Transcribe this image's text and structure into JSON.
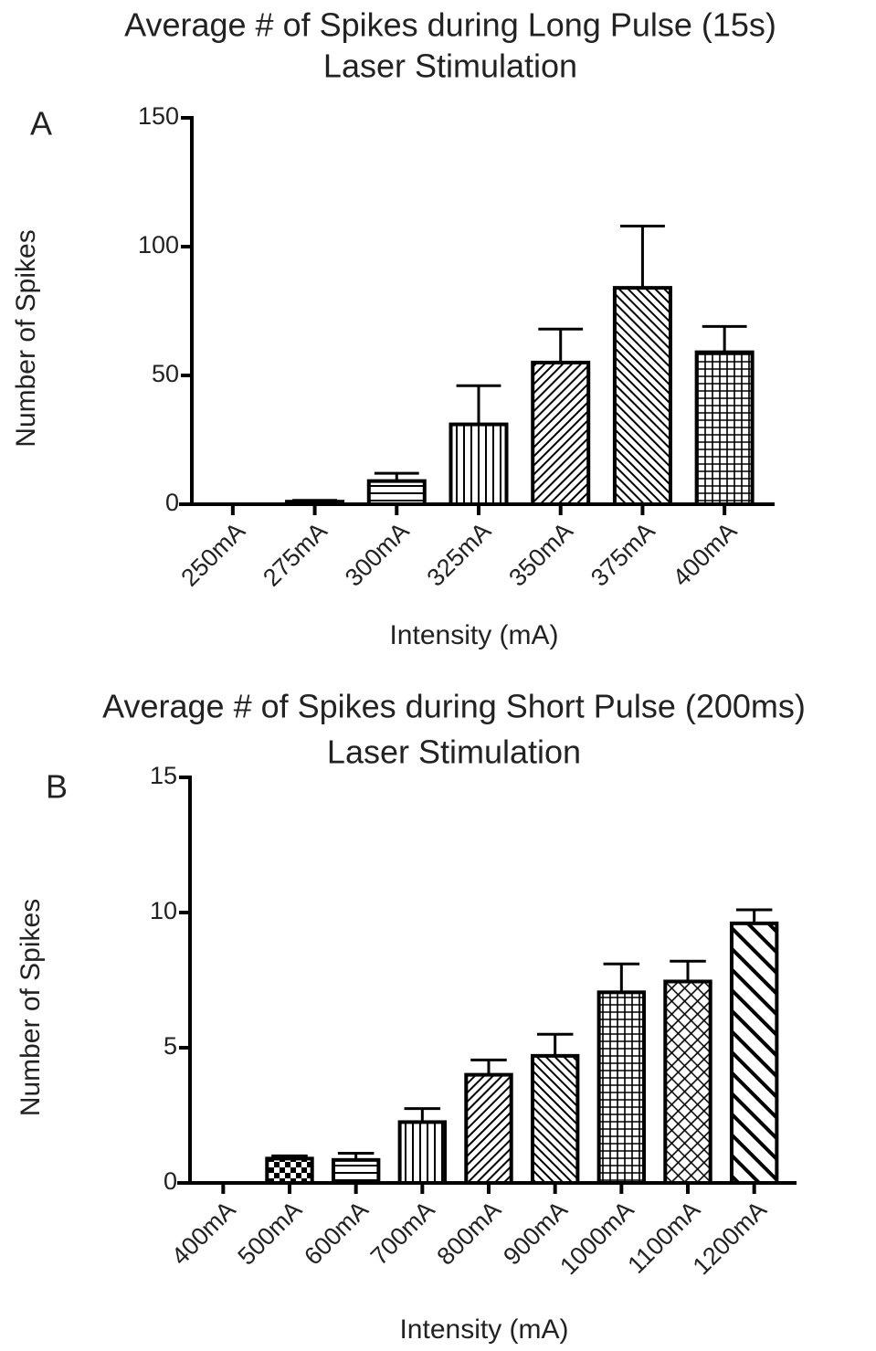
{
  "chart_data": [
    {
      "type": "bar",
      "panel_label": "A",
      "title": "Average # of Spikes during Long Pulse (15s)",
      "subtitle": "Laser Stimulation",
      "x_label": "Intensity (mA)",
      "y_label": "Number of Spikes",
      "categories": [
        "250mA",
        "275mA",
        "300mA",
        "325mA",
        "350mA",
        "375mA",
        "400mA"
      ],
      "values": [
        0,
        1,
        9,
        31,
        55,
        84,
        59
      ],
      "errors": [
        0,
        0.5,
        3,
        15,
        13,
        24,
        10
      ],
      "patterns": [
        "horizontal",
        "horizontal",
        "horizontal",
        "vertical",
        "diag-up",
        "diag-down",
        "grid"
      ],
      "color": "#000000",
      "ylim": [
        0,
        150
      ],
      "yticks": [
        0,
        50,
        100,
        150
      ]
    },
    {
      "type": "bar",
      "panel_label": "B",
      "title": "Average # of Spikes during Short Pulse (200ms)",
      "subtitle": "Laser Stimulation",
      "x_label": "Intensity (mA)",
      "y_label": "Number of Spikes",
      "categories": [
        "400mA",
        "500mA",
        "600mA",
        "700mA",
        "800mA",
        "900mA",
        "1000mA",
        "1100mA",
        "1200mA"
      ],
      "values": [
        0,
        0.9,
        0.85,
        2.25,
        4,
        4.7,
        7.05,
        7.45,
        9.6
      ],
      "errors": [
        0,
        0.1,
        0.25,
        0.5,
        0.55,
        0.8,
        1.05,
        0.75,
        0.5
      ],
      "patterns": [
        "horizontal",
        "checker",
        "horizontal",
        "vertical",
        "diag-up",
        "diag-down",
        "grid",
        "crosshatch",
        "diag-down-thick"
      ],
      "color": "#000000",
      "ylim": [
        0,
        15
      ],
      "yticks": [
        0,
        5,
        10,
        15
      ]
    }
  ]
}
